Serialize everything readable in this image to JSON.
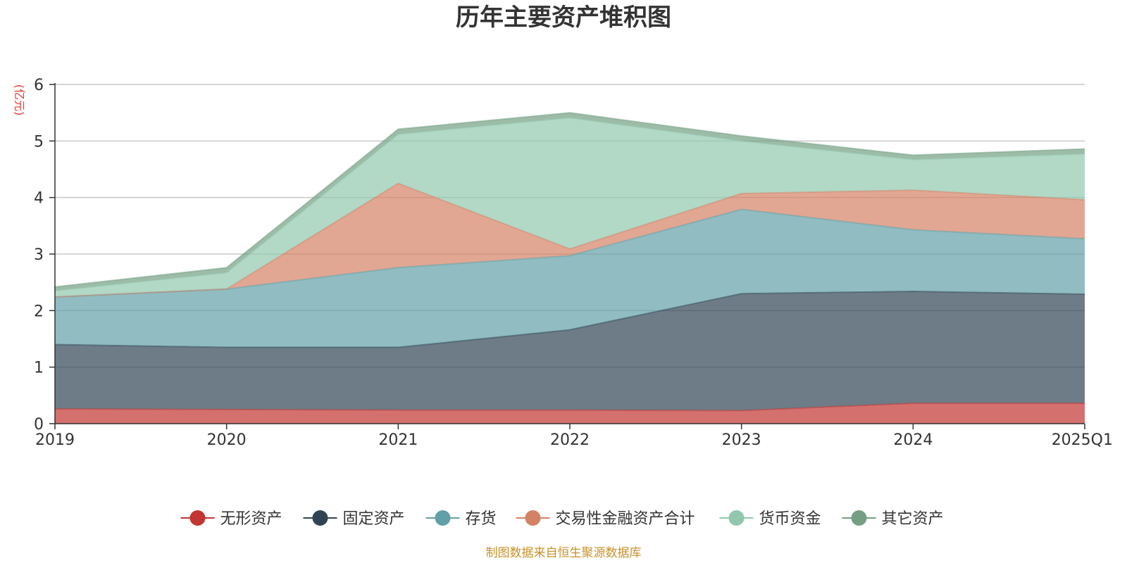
{
  "chart_data": {
    "type": "area",
    "stacked": true,
    "title": "历年主要资产堆积图",
    "unit_label": "(亿元)",
    "categories": [
      "2019",
      "2020",
      "2021",
      "2022",
      "2023",
      "2024",
      "2025Q1"
    ],
    "ylim": [
      0,
      6
    ],
    "yticks": [
      "0",
      "1",
      "2",
      "3",
      "4",
      "5",
      "6"
    ],
    "grid": true,
    "legend_position": "bottom",
    "series": [
      {
        "name": "无形资产",
        "color": "#c23531",
        "values": [
          0.26,
          0.25,
          0.24,
          0.24,
          0.23,
          0.36,
          0.36
        ]
      },
      {
        "name": "固定资产",
        "color": "#2f4554",
        "values": [
          1.14,
          1.1,
          1.11,
          1.42,
          2.07,
          1.98,
          1.93
        ]
      },
      {
        "name": "存货",
        "color": "#61a0a8",
        "values": [
          0.84,
          1.03,
          1.41,
          1.31,
          1.49,
          1.09,
          0.98
        ]
      },
      {
        "name": "交易性金融资产合计",
        "color": "#d48265",
        "values": [
          0.0,
          0.0,
          1.49,
          0.12,
          0.28,
          0.7,
          0.69
        ]
      },
      {
        "name": "货币资金",
        "color": "#91c7ae",
        "values": [
          0.11,
          0.29,
          0.87,
          2.32,
          0.93,
          0.54,
          0.81
        ]
      },
      {
        "name": "其它资产",
        "color": "#749f83",
        "values": [
          0.07,
          0.09,
          0.09,
          0.09,
          0.09,
          0.08,
          0.09
        ]
      }
    ],
    "source": "制图数据来自恒生聚源数据库"
  }
}
